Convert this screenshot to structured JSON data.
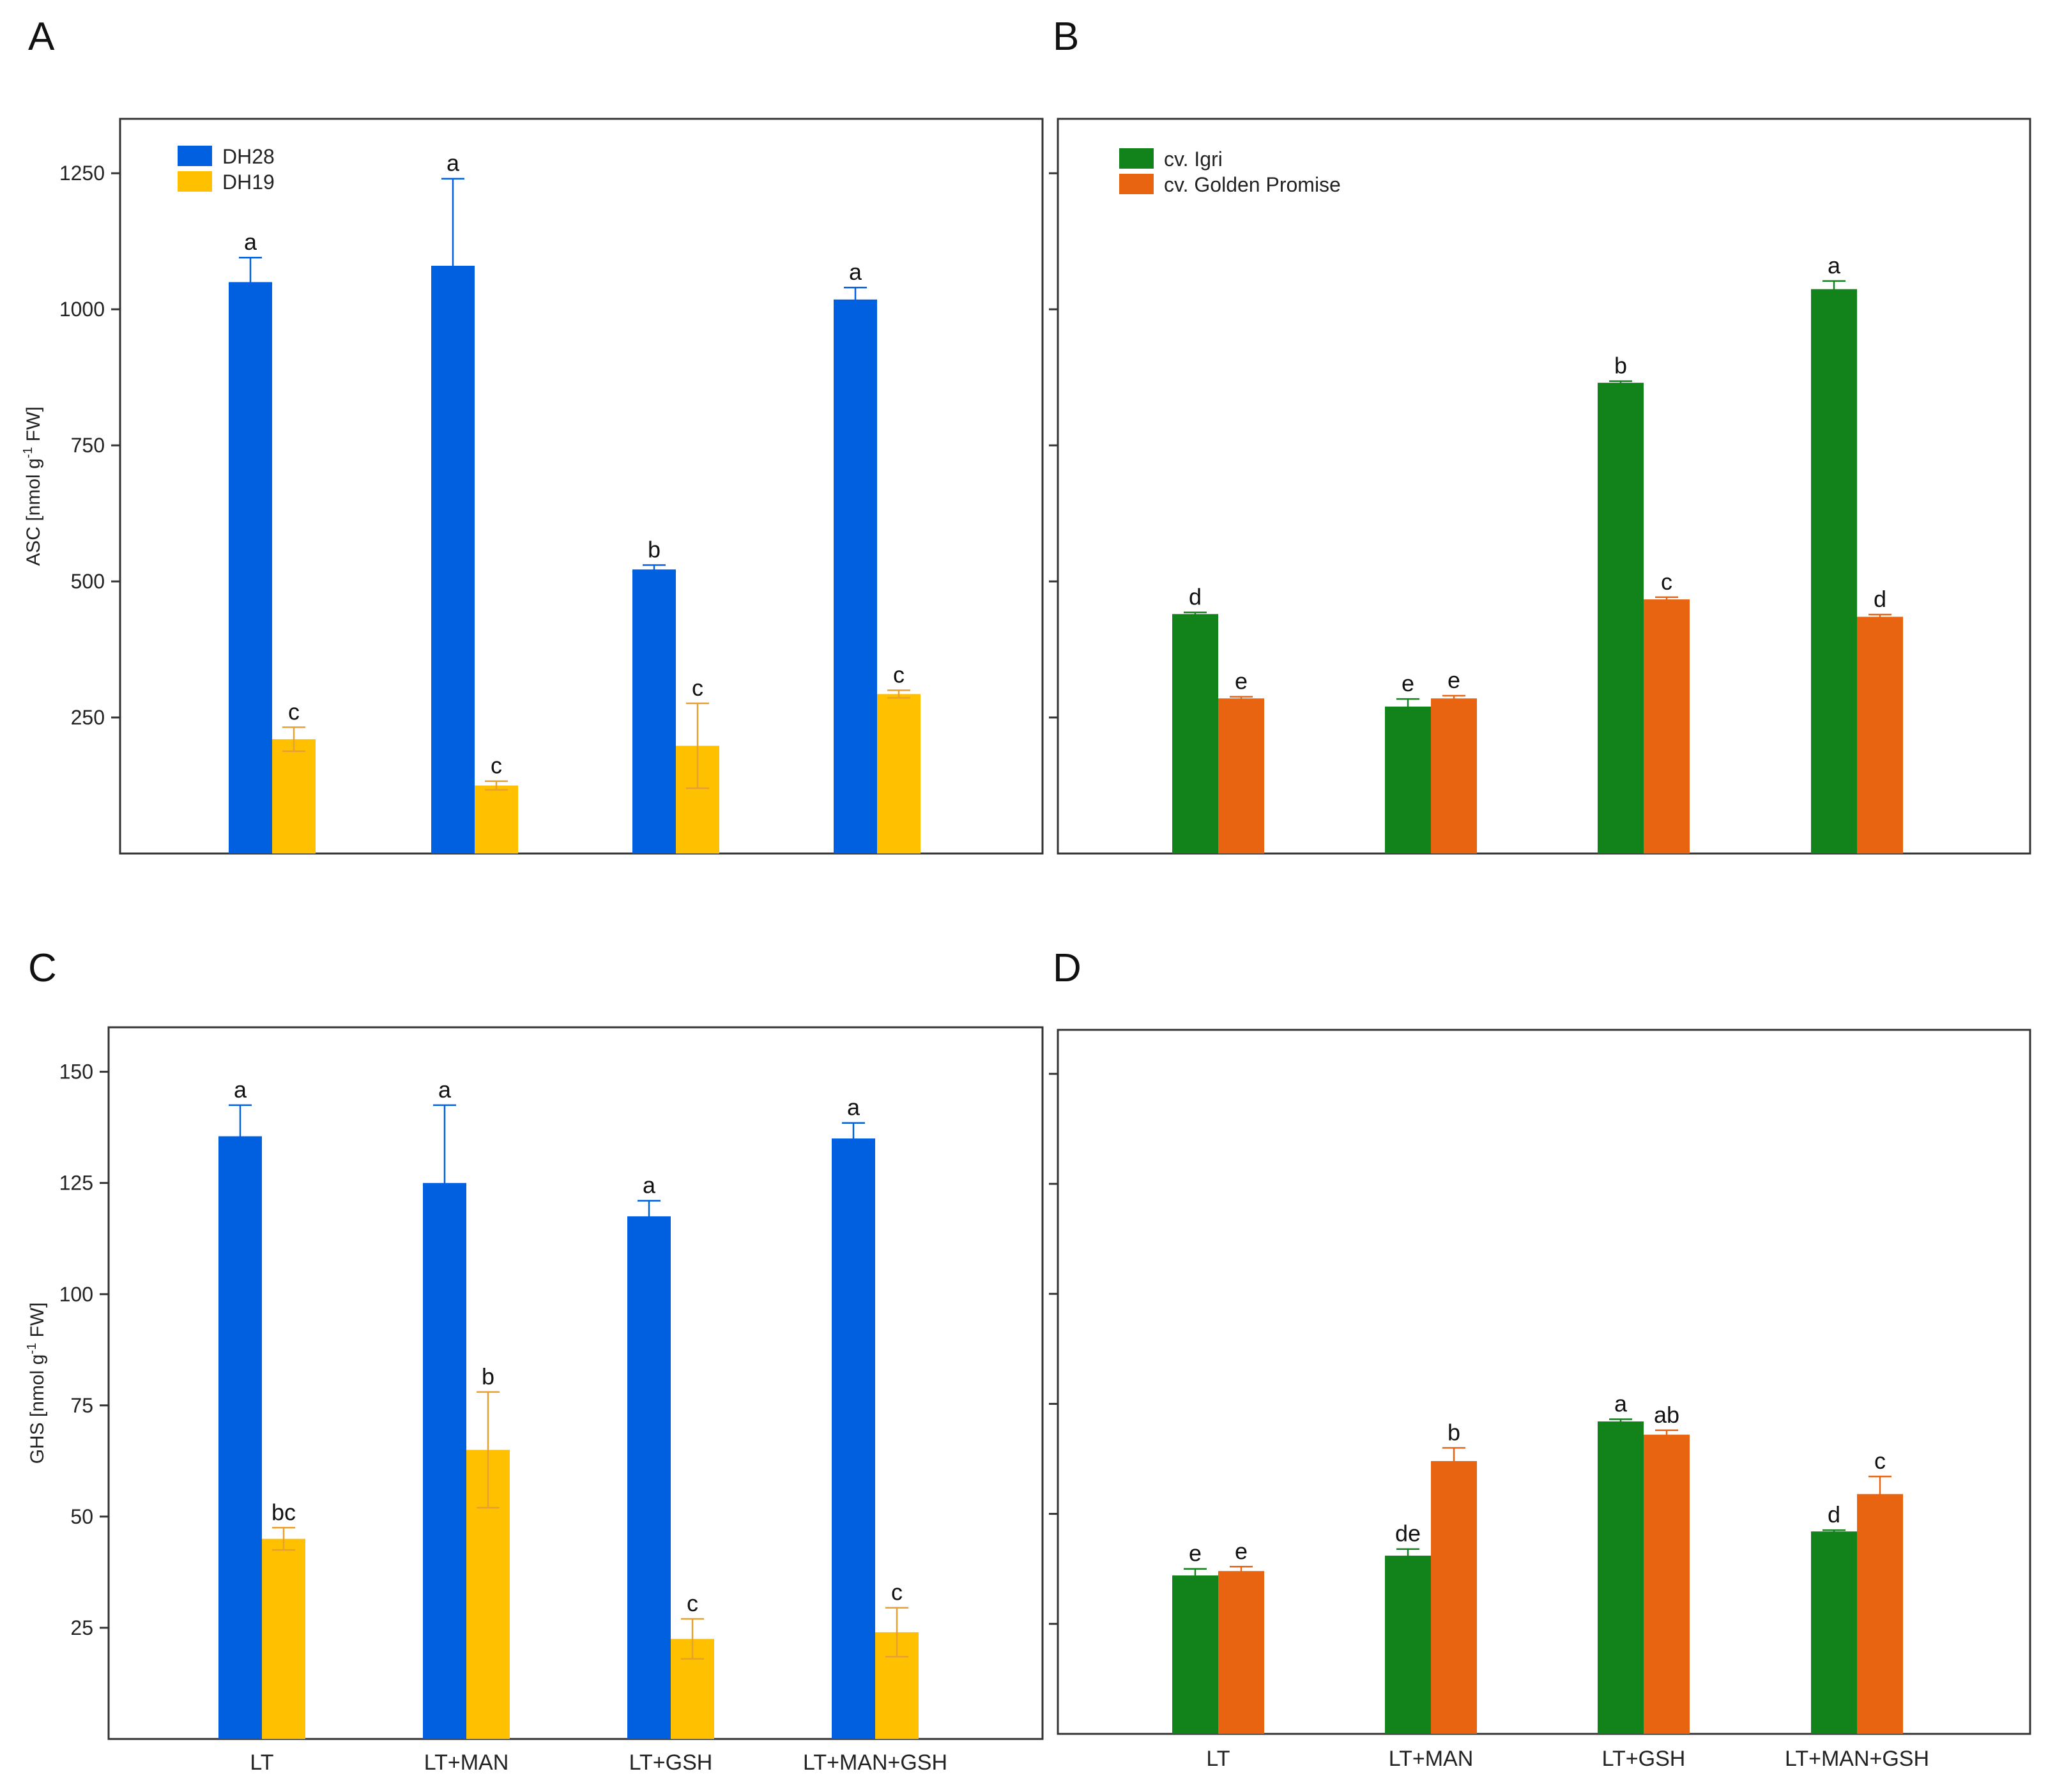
{
  "colors": {
    "dh28": "#0060e0",
    "dh19": "#ffc000",
    "dh19_err": "#e8a030",
    "igri": "#12821a",
    "golden": "#e86410",
    "axis": "#333333"
  },
  "categories": [
    "LT",
    "LT+MAN",
    "LT+GSH",
    "LT+MAN+GSH"
  ],
  "chart_data": [
    {
      "panel": "A",
      "type": "bar",
      "ylabel_main": "ASC [nmol g",
      "ylabel_sup": "-1",
      "ylabel_tail": " FW]",
      "ylim": [
        0,
        1350
      ],
      "yticks": [
        250,
        500,
        750,
        1000,
        1250
      ],
      "tick_labels": [
        "250",
        "500",
        "750",
        "1000",
        "1250"
      ],
      "legend_position": "top-left",
      "categories": [
        "LT",
        "LT+MAN",
        "LT+GSH",
        "LT+MAN+GSH"
      ],
      "show_category_labels": false,
      "series": [
        {
          "name": "DH28",
          "color_key": "dh28",
          "err_color_key": "dh28",
          "values": [
            1050,
            1080,
            522,
            1018
          ],
          "errors": [
            45,
            160,
            8,
            22
          ],
          "labels": [
            "a",
            "a",
            "b",
            "a"
          ]
        },
        {
          "name": "DH19",
          "color_key": "dh19",
          "err_color_key": "dh19_err",
          "values": [
            210,
            125,
            198,
            293
          ],
          "errors": [
            22,
            8,
            78,
            7
          ],
          "labels": [
            "c",
            "c",
            "c",
            "c"
          ]
        }
      ]
    },
    {
      "panel": "B",
      "type": "bar",
      "ylim": [
        0,
        1350
      ],
      "yticks": [
        250,
        500,
        750,
        1000,
        1250
      ],
      "legend_position": "top-left",
      "categories": [
        "LT",
        "LT+MAN",
        "LT+GSH",
        "LT+MAN+GSH"
      ],
      "show_category_labels": false,
      "series": [
        {
          "name": "cv. Igri",
          "color_key": "igri",
          "err_color_key": "igri",
          "values": [
            440,
            270,
            865,
            1037
          ],
          "errors": [
            3,
            14,
            3,
            15
          ],
          "labels": [
            "d",
            "e",
            "b",
            "a"
          ]
        },
        {
          "name": "cv. Golden Promise",
          "color_key": "golden",
          "err_color_key": "golden",
          "values": [
            285,
            285,
            467,
            435
          ],
          "errors": [
            3,
            5,
            4,
            4
          ],
          "labels": [
            "e",
            "e",
            "c",
            "d"
          ]
        }
      ]
    },
    {
      "panel": "C",
      "type": "bar",
      "ylabel_main": "GHS [nmol g",
      "ylabel_sup": "-1",
      "ylabel_tail": " FW]",
      "ylim": [
        0,
        160
      ],
      "yticks": [
        25,
        50,
        75,
        100,
        125,
        150
      ],
      "tick_labels": [
        "25",
        "50",
        "75",
        "100",
        "125",
        "150"
      ],
      "categories": [
        "LT",
        "LT+MAN",
        "LT+GSH",
        "LT+MAN+GSH"
      ],
      "show_category_labels": true,
      "series": [
        {
          "name": "DH28",
          "color_key": "dh28",
          "err_color_key": "dh28",
          "values": [
            135.5,
            125,
            117.5,
            135
          ],
          "errors": [
            7,
            17.5,
            3.5,
            3.5
          ],
          "labels": [
            "a",
            "a",
            "a",
            "a"
          ]
        },
        {
          "name": "DH19",
          "color_key": "dh19",
          "err_color_key": "dh19_err",
          "values": [
            45,
            65,
            22.5,
            24
          ],
          "errors": [
            2.5,
            13,
            4.5,
            5.5
          ],
          "labels": [
            "bc",
            "b",
            "c",
            "c"
          ]
        }
      ]
    },
    {
      "panel": "D",
      "type": "bar",
      "ylim": [
        0,
        160
      ],
      "yticks": [
        25,
        50,
        75,
        100,
        125,
        150
      ],
      "categories": [
        "LT",
        "LT+MAN",
        "LT+GSH",
        "LT+MAN+GSH"
      ],
      "show_category_labels": true,
      "series": [
        {
          "name": "cv. Igri",
          "color_key": "igri",
          "err_color_key": "igri",
          "values": [
            36,
            40.5,
            71,
            46
          ],
          "errors": [
            1.5,
            1.5,
            0.5,
            0.3
          ],
          "labels": [
            "e",
            "de",
            "a",
            "d"
          ]
        },
        {
          "name": "cv. Golden Promise",
          "color_key": "golden",
          "err_color_key": "golden",
          "values": [
            37,
            62,
            68,
            54.5
          ],
          "errors": [
            1,
            3,
            1,
            4
          ],
          "labels": [
            "e",
            "b",
            "ab",
            "c"
          ]
        }
      ]
    }
  ]
}
